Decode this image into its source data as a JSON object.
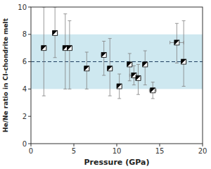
{
  "chart_data": {
    "type": "scatter",
    "xlabel": "Pressure (GPa)",
    "ylabel": "He/Ne ratio in CI-chondrite melt",
    "xlim": [
      0,
      20
    ],
    "ylim": [
      0,
      10
    ],
    "xticks": [
      0,
      5,
      10,
      15,
      20
    ],
    "yticks": [
      0,
      2,
      4,
      6,
      8,
      10
    ],
    "x": [
      1.5,
      2.8,
      4.0,
      4.5,
      6.5,
      8.5,
      9.2,
      10.3,
      11.5,
      12.0,
      12.5,
      13.3,
      14.2,
      17.0,
      17.8
    ],
    "values": [
      7.0,
      8.1,
      7.0,
      7.0,
      5.5,
      6.5,
      5.5,
      4.2,
      5.8,
      5.0,
      4.8,
      5.8,
      3.9,
      7.4,
      6.0
    ],
    "yerr_lo": [
      3.5,
      1.8,
      3.0,
      3.0,
      1.5,
      1.5,
      2.0,
      0.9,
      1.2,
      0.7,
      1.2,
      1.5,
      0.6,
      1.5,
      1.8
    ],
    "yerr_hi": [
      3.0,
      1.9,
      2.5,
      2.0,
      1.2,
      1.0,
      2.2,
      0.9,
      0.8,
      0.7,
      1.0,
      1.0,
      0.6,
      1.4,
      3.0
    ],
    "xerr": [
      0.3,
      0.3,
      0.3,
      0.3,
      0.3,
      0.3,
      0.3,
      0.3,
      0.3,
      0.5,
      0.3,
      0.3,
      0.4,
      0.8,
      0.3
    ],
    "marker": "square",
    "color": "black",
    "error_color": "gray",
    "band": {
      "ymin": 4.0,
      "ymax": 8.0,
      "color": "#add8e6"
    },
    "reference_line": {
      "y": 6.0,
      "color": "#1a3a5c",
      "line_style": "dashed"
    }
  }
}
